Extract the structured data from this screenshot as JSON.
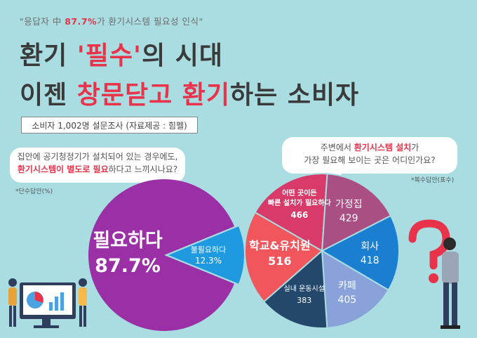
{
  "header": {
    "quote_prefix": "\"응답자 中 ",
    "quote_highlight": "87.7%",
    "quote_suffix": "가 환기시스템 필요성 인식\"",
    "line1_part1": "환기 ",
    "line1_part2": "'필수'",
    "line1_part3": "의 시대",
    "line2_part1": "이젠 ",
    "line2_part2": "창문닫고 환기",
    "line2_part3": "하는 소비자",
    "survey": "소비자 1,002명 설문조사 (자료제공 : 힘펠)"
  },
  "question1": {
    "line1": "집안에 공기청정기가 설치되어 있는 경우에도,",
    "line2_highlight": "환기시스템이 별도로 필요",
    "line2_rest": "하다고 느끼시나요?",
    "note": "*단수답안(%)"
  },
  "question2": {
    "line1_prefix": "주변에서 ",
    "line1_highlight": "환기시스템 설치",
    "line1_suffix": "가",
    "line2": "가장 필요해 보이는 곳은 어디인가요?",
    "note": "*복수답안(표수)"
  },
  "colors": {
    "need": "#9b2fa6",
    "noneed": "#1f9ae0",
    "fast": "#d83a6a",
    "home": "#a94f83",
    "office": "#1b7fd1",
    "cafe": "#8aa2da",
    "gym": "#24476c",
    "school": "#f1565c"
  },
  "chart_data": [
    {
      "type": "pie",
      "labels": [
        "필요하다",
        "불필요하다"
      ],
      "values": [
        87.7,
        12.3
      ],
      "value_labels": [
        "87.7%",
        "12.3%"
      ]
    },
    {
      "type": "pie",
      "labels": [
        "어떤 곳이든 빠른 설치가 필요하다",
        "가정집",
        "회사",
        "카페",
        "실내 운동시설",
        "학교&유치원"
      ],
      "label_lines": [
        [
          "어떤 곳이든",
          "빠른 설치가 필요하다"
        ],
        [
          "가정집"
        ],
        [
          "회사"
        ],
        [
          "카페"
        ],
        [
          "실내 운동시설"
        ],
        [
          "학교&유치원"
        ]
      ],
      "values": [
        466,
        429,
        418,
        405,
        383,
        516
      ]
    }
  ]
}
